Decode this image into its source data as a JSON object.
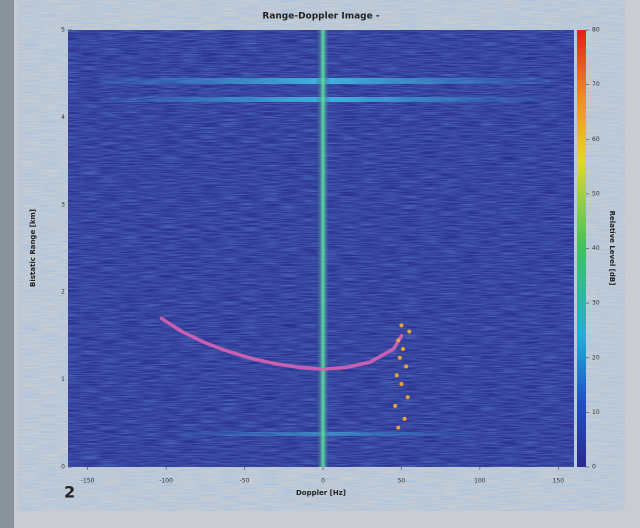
{
  "chart_data": {
    "type": "heatmap",
    "title": "Range-Doppler Image -",
    "xlabel": "Doppler [Hz]",
    "ylabel": "Bistatic Range [km]",
    "colorbar_label": "Relative Level [dB]",
    "annotation": "2",
    "xlim": [
      -160,
      160
    ],
    "ylim": [
      0,
      5
    ],
    "xticks": [
      -150,
      -100,
      -50,
      0,
      50,
      100,
      150
    ],
    "yticks": [
      0,
      1,
      2,
      3,
      4,
      5
    ],
    "clim": [
      0,
      80
    ],
    "cticks": [
      0,
      10,
      20,
      30,
      40,
      50,
      60,
      70,
      80
    ],
    "series": [
      {
        "type": "line",
        "color": "#d862b4",
        "x": [
          -103,
          -90,
          -75,
          -60,
          -45,
          -30,
          -15,
          0,
          15,
          30,
          45,
          50
        ],
        "values": [
          1.7,
          1.55,
          1.42,
          1.32,
          1.24,
          1.18,
          1.14,
          1.12,
          1.14,
          1.2,
          1.35,
          1.5
        ]
      },
      {
        "type": "scatter",
        "color": "#e8a332",
        "x": [
          48,
          52,
          46,
          54,
          50,
          47,
          53,
          49,
          51,
          48,
          55,
          50
        ],
        "values": [
          0.45,
          0.55,
          0.7,
          0.8,
          0.95,
          1.05,
          1.15,
          1.25,
          1.35,
          1.45,
          1.55,
          1.62
        ]
      }
    ]
  }
}
